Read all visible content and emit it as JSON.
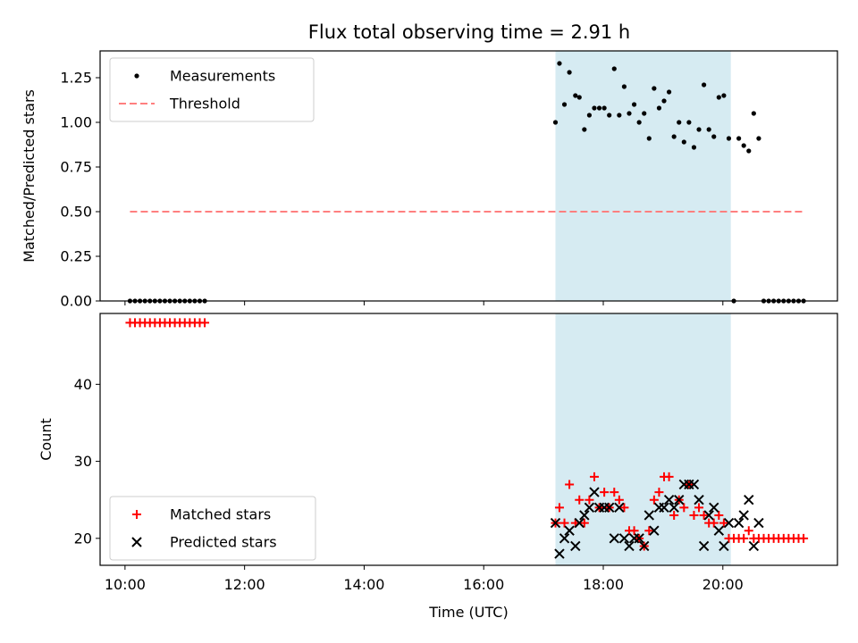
{
  "title": "Flux total observing time = 2.91 h",
  "colors": {
    "measurement": "#000000",
    "threshold": "#ff7f7f",
    "matched": "#ff0000",
    "predicted": "#000000",
    "shade": "#add8e6"
  },
  "chart_data": [
    {
      "type": "scatter",
      "panel": "top",
      "ylabel": "Matched/Predicted stars",
      "xlabel": "",
      "xlim": [
        "09:35",
        "21:55"
      ],
      "ylim": [
        0,
        1.4
      ],
      "yticks": [
        "0.00",
        "0.25",
        "0.50",
        "0.75",
        "1.00",
        "1.25"
      ],
      "shaded_region": [
        "17:12",
        "20:08"
      ],
      "legend_position": "upper left",
      "series": [
        {
          "name": "Measurements",
          "style": "dot",
          "points": [
            [
              "10:05",
              0
            ],
            [
              "10:10",
              0
            ],
            [
              "10:15",
              0
            ],
            [
              "10:20",
              0
            ],
            [
              "10:25",
              0
            ],
            [
              "10:30",
              0
            ],
            [
              "10:35",
              0
            ],
            [
              "10:40",
              0
            ],
            [
              "10:45",
              0
            ],
            [
              "10:50",
              0
            ],
            [
              "10:55",
              0
            ],
            [
              "11:00",
              0
            ],
            [
              "11:05",
              0
            ],
            [
              "11:10",
              0
            ],
            [
              "11:15",
              0
            ],
            [
              "11:20",
              0
            ],
            [
              "17:12",
              1.0
            ],
            [
              "17:16",
              1.33
            ],
            [
              "17:21",
              1.1
            ],
            [
              "17:26",
              1.28
            ],
            [
              "17:32",
              1.15
            ],
            [
              "17:36",
              1.14
            ],
            [
              "17:41",
              0.96
            ],
            [
              "17:46",
              1.04
            ],
            [
              "17:51",
              1.08
            ],
            [
              "17:56",
              1.08
            ],
            [
              "18:01",
              1.08
            ],
            [
              "18:06",
              1.04
            ],
            [
              "18:11",
              1.3
            ],
            [
              "18:16",
              1.04
            ],
            [
              "18:21",
              1.2
            ],
            [
              "18:26",
              1.05
            ],
            [
              "18:31",
              1.1
            ],
            [
              "18:36",
              1.0
            ],
            [
              "18:41",
              1.05
            ],
            [
              "18:46",
              0.91
            ],
            [
              "18:51",
              1.19
            ],
            [
              "18:56",
              1.08
            ],
            [
              "19:01",
              1.12
            ],
            [
              "19:06",
              1.17
            ],
            [
              "19:11",
              0.92
            ],
            [
              "19:16",
              1.0
            ],
            [
              "19:21",
              0.89
            ],
            [
              "19:26",
              1.0
            ],
            [
              "19:31",
              0.86
            ],
            [
              "19:36",
              0.96
            ],
            [
              "19:41",
              1.21
            ],
            [
              "19:46",
              0.96
            ],
            [
              "19:51",
              0.92
            ],
            [
              "19:56",
              1.14
            ],
            [
              "20:01",
              1.15
            ],
            [
              "20:06",
              0.91
            ],
            [
              "20:11",
              0
            ],
            [
              "20:16",
              0.91
            ],
            [
              "20:21",
              0.87
            ],
            [
              "20:26",
              0.84
            ],
            [
              "20:31",
              1.05
            ],
            [
              "20:36",
              0.91
            ],
            [
              "20:41",
              0
            ],
            [
              "20:46",
              0
            ],
            [
              "20:51",
              0
            ],
            [
              "20:56",
              0
            ],
            [
              "21:01",
              0
            ],
            [
              "21:06",
              0
            ],
            [
              "21:11",
              0
            ],
            [
              "21:16",
              0
            ],
            [
              "21:21",
              0
            ]
          ]
        },
        {
          "name": "Threshold",
          "style": "dashed-line",
          "points": [
            [
              "10:05",
              0.5
            ],
            [
              "21:21",
              0.5
            ]
          ]
        }
      ]
    },
    {
      "type": "scatter",
      "panel": "bottom",
      "ylabel": "Count",
      "xlabel": "Time (UTC)",
      "xlim": [
        "09:35",
        "21:55"
      ],
      "ylim": [
        16.5,
        49.2
      ],
      "yticks": [
        "20",
        "30",
        "40"
      ],
      "xticks": [
        "10:00",
        "12:00",
        "14:00",
        "16:00",
        "18:00",
        "20:00"
      ],
      "shaded_region": [
        "17:12",
        "20:08"
      ],
      "legend_position": "lower left",
      "series": [
        {
          "name": "Matched stars",
          "style": "plus",
          "points": [
            [
              "10:05",
              48
            ],
            [
              "10:10",
              48
            ],
            [
              "10:15",
              48
            ],
            [
              "10:20",
              48
            ],
            [
              "10:25",
              48
            ],
            [
              "10:30",
              48
            ],
            [
              "10:35",
              48
            ],
            [
              "10:40",
              48
            ],
            [
              "10:45",
              48
            ],
            [
              "10:50",
              48
            ],
            [
              "10:55",
              48
            ],
            [
              "11:00",
              48
            ],
            [
              "11:05",
              48
            ],
            [
              "11:10",
              48
            ],
            [
              "11:15",
              48
            ],
            [
              "11:20",
              48
            ],
            [
              "17:12",
              22
            ],
            [
              "17:16",
              24
            ],
            [
              "17:21",
              22
            ],
            [
              "17:26",
              27
            ],
            [
              "17:32",
              22
            ],
            [
              "17:36",
              25
            ],
            [
              "17:41",
              22
            ],
            [
              "17:46",
              25
            ],
            [
              "17:51",
              28
            ],
            [
              "17:56",
              24
            ],
            [
              "18:01",
              26
            ],
            [
              "18:06",
              24
            ],
            [
              "18:11",
              26
            ],
            [
              "18:16",
              25
            ],
            [
              "18:21",
              24
            ],
            [
              "18:26",
              21
            ],
            [
              "18:31",
              21
            ],
            [
              "18:36",
              20
            ],
            [
              "18:41",
              19
            ],
            [
              "18:46",
              21
            ],
            [
              "18:51",
              25
            ],
            [
              "18:56",
              26
            ],
            [
              "19:01",
              28
            ],
            [
              "19:06",
              28
            ],
            [
              "19:11",
              23
            ],
            [
              "19:16",
              25
            ],
            [
              "19:21",
              24
            ],
            [
              "19:26",
              27
            ],
            [
              "19:31",
              23
            ],
            [
              "19:36",
              24
            ],
            [
              "19:41",
              23
            ],
            [
              "19:46",
              22
            ],
            [
              "19:51",
              22
            ],
            [
              "19:56",
              23
            ],
            [
              "20:01",
              22
            ],
            [
              "20:06",
              20
            ],
            [
              "20:11",
              20
            ],
            [
              "20:16",
              20
            ],
            [
              "20:21",
              20
            ],
            [
              "20:26",
              21
            ],
            [
              "20:31",
              20
            ],
            [
              "20:36",
              20
            ],
            [
              "20:41",
              20
            ],
            [
              "20:46",
              20
            ],
            [
              "20:51",
              20
            ],
            [
              "20:56",
              20
            ],
            [
              "21:01",
              20
            ],
            [
              "21:06",
              20
            ],
            [
              "21:11",
              20
            ],
            [
              "21:16",
              20
            ],
            [
              "21:21",
              20
            ]
          ]
        },
        {
          "name": "Predicted stars",
          "style": "x",
          "points": [
            [
              "17:12",
              22
            ],
            [
              "17:16",
              18
            ],
            [
              "17:21",
              20
            ],
            [
              "17:26",
              21
            ],
            [
              "17:32",
              19
            ],
            [
              "17:36",
              22
            ],
            [
              "17:41",
              23
            ],
            [
              "17:46",
              24
            ],
            [
              "17:51",
              26
            ],
            [
              "17:56",
              24
            ],
            [
              "18:01",
              24
            ],
            [
              "18:06",
              24
            ],
            [
              "18:11",
              20
            ],
            [
              "18:16",
              24
            ],
            [
              "18:21",
              20
            ],
            [
              "18:26",
              19
            ],
            [
              "18:31",
              20
            ],
            [
              "18:36",
              20
            ],
            [
              "18:41",
              19
            ],
            [
              "18:46",
              23
            ],
            [
              "18:51",
              21
            ],
            [
              "18:56",
              24
            ],
            [
              "19:01",
              24
            ],
            [
              "19:06",
              25
            ],
            [
              "19:11",
              24
            ],
            [
              "19:16",
              25
            ],
            [
              "19:21",
              27
            ],
            [
              "19:26",
              27
            ],
            [
              "19:31",
              27
            ],
            [
              "19:36",
              25
            ],
            [
              "19:41",
              19
            ],
            [
              "19:46",
              23
            ],
            [
              "19:51",
              24
            ],
            [
              "19:56",
              21
            ],
            [
              "20:01",
              19
            ],
            [
              "20:06",
              22
            ],
            [
              "20:16",
              22
            ],
            [
              "20:21",
              23
            ],
            [
              "20:26",
              25
            ],
            [
              "20:31",
              19
            ],
            [
              "20:36",
              22
            ]
          ]
        }
      ]
    }
  ]
}
